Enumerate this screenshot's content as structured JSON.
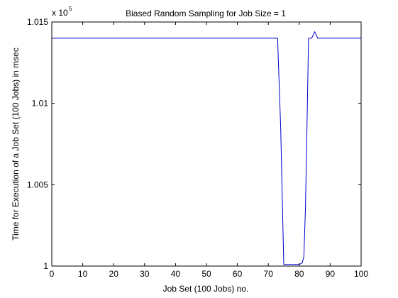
{
  "chart_data": {
    "type": "line",
    "title": "Biased Random Sampling for Job Size = 1",
    "xlabel": "Job Set (100 Jobs) no.",
    "ylabel": "Time for Execution of a Job Set (100 Jobs) in msec",
    "y_multiplier_base": "x 10",
    "y_multiplier_exp": "5",
    "xlim": [
      0,
      100
    ],
    "ylim": [
      1.0,
      1.015
    ],
    "x_ticks": [
      0,
      10,
      20,
      30,
      40,
      50,
      60,
      70,
      80,
      90,
      100
    ],
    "x_tick_labels": [
      "0",
      "10",
      "20",
      "30",
      "40",
      "50",
      "60",
      "70",
      "80",
      "90",
      "100"
    ],
    "y_ticks": [
      1.0,
      1.005,
      1.01,
      1.015
    ],
    "y_tick_labels": [
      "1",
      "1.005",
      "1.01",
      "1.015"
    ],
    "grid": false,
    "series": [
      {
        "color": "#0000cc",
        "x": [
          0,
          73,
          74,
          75,
          76,
          77,
          78,
          79,
          80,
          81,
          81.5,
          82,
          82.5,
          83,
          84,
          84.5,
          85,
          86,
          87,
          100
        ],
        "y": [
          1.014,
          1.014,
          1.0085,
          1.0001,
          1.0001,
          1.0001,
          1.0001,
          1.0001,
          1.0001,
          1.0002,
          1.0006,
          1.0035,
          1.0085,
          1.014,
          1.014,
          1.0142,
          1.0144,
          1.014,
          1.014,
          1.014
        ]
      }
    ]
  }
}
